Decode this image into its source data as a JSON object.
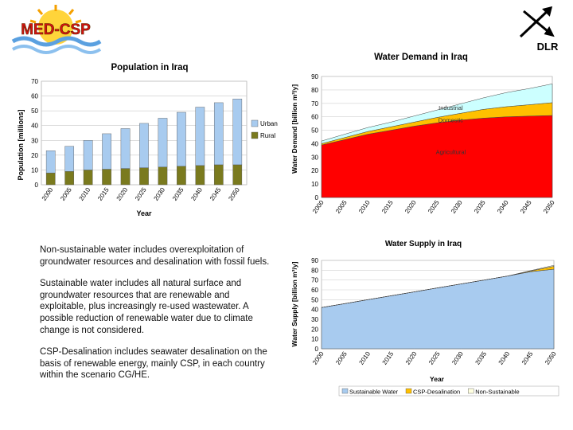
{
  "logos": {
    "left_text": "MED-CSP",
    "right_text": "DLR",
    "right_icon": "dlr-arrows-icon",
    "left_icon": "sun-wave-logo-icon"
  },
  "notes": {
    "p1": "Non-sustainable water includes overexploitation of groundwater resources and desalination with fossil fuels.",
    "p2": "Sustainable water includes all natural surface and groundwater resources that are renewable and exploitable, plus increasingly re-used wastewater. A possible reduction of renewable water due to climate change is not considered.",
    "p3": "CSP-Desalination includes seawater desalination on the basis of renewable energy, mainly CSP, in each country within the scenario CG/HE."
  },
  "chart_data": [
    {
      "id": "population",
      "type": "bar",
      "stacked": true,
      "title": "Population in Iraq",
      "xlabel": "Year",
      "ylabel": "Population [millions]",
      "ylim": [
        0,
        70
      ],
      "yticks": [
        0,
        10,
        20,
        30,
        40,
        50,
        60,
        70
      ],
      "categories": [
        "2000",
        "2005",
        "2010",
        "2015",
        "2020",
        "2025",
        "2030",
        "2035",
        "2040",
        "2045",
        "2050"
      ],
      "series": [
        {
          "name": "Rural",
          "color": "#7a7a1e",
          "values": [
            8,
            9,
            10,
            10.5,
            11,
            11.5,
            12,
            12.5,
            13,
            13.5,
            13.5
          ]
        },
        {
          "name": "Urban",
          "color": "#a8cbef",
          "values": [
            15,
            17,
            20,
            24,
            27,
            30,
            33,
            36.5,
            39.5,
            42,
            44.5
          ]
        }
      ],
      "legend": [
        "Urban",
        "Rural"
      ],
      "legend_position": "right"
    },
    {
      "id": "demand",
      "type": "area",
      "stacked": true,
      "title": "Water Demand in Iraq",
      "xlabel": "",
      "ylabel": "Water Demand [billion m³/y]",
      "ylim": [
        0,
        90
      ],
      "yticks": [
        0,
        10,
        20,
        30,
        40,
        50,
        60,
        70,
        80,
        90
      ],
      "x": [
        "2000",
        "2005",
        "2010",
        "2015",
        "2020",
        "2025",
        "2030",
        "2035",
        "2040",
        "2045",
        "2050"
      ],
      "series": [
        {
          "name": "Agricultural",
          "color": "#ff0000",
          "values": [
            39,
            43,
            47,
            50,
            53,
            55.5,
            57.5,
            59,
            60,
            60.5,
            61
          ]
        },
        {
          "name": "Domestic",
          "color": "#ffc000",
          "values": [
            1,
            1.5,
            2,
            2.5,
            3,
            4,
            5,
            6.5,
            7.5,
            8.5,
            9.5
          ]
        },
        {
          "name": "Industrial",
          "color": "#ccffff",
          "values": [
            2,
            2.5,
            3,
            3.5,
            4.5,
            5.5,
            7,
            8.5,
            10.5,
            12,
            14
          ]
        }
      ],
      "annotations": [
        "Industrial",
        "Domestic",
        "Agricultural"
      ]
    },
    {
      "id": "supply",
      "type": "area",
      "stacked": true,
      "title": "Water Supply in Iraq",
      "xlabel": "Year",
      "ylabel": "Water Supply [billion m³/y]",
      "ylim": [
        0,
        90
      ],
      "yticks": [
        0,
        10,
        20,
        30,
        40,
        50,
        60,
        70,
        80,
        90
      ],
      "x": [
        "2000",
        "2005",
        "2010",
        "2015",
        "2020",
        "2025",
        "2030",
        "2035",
        "2040",
        "2045",
        "2050"
      ],
      "series": [
        {
          "name": "Sustainable Water",
          "color": "#a8cbef",
          "values": [
            42,
            46,
            50,
            54,
            58,
            62,
            66,
            70,
            74,
            78.5,
            81
          ]
        },
        {
          "name": "CSP-Desalination",
          "color": "#ffc000",
          "values": [
            0,
            0,
            0,
            0,
            0,
            0,
            0,
            0,
            0,
            0.7,
            3
          ]
        },
        {
          "name": "Non-Sustainable",
          "color": "#ffffe0",
          "values": [
            0,
            0,
            0,
            0,
            0,
            0,
            0,
            0,
            0,
            0.4,
            1
          ]
        }
      ],
      "legend": [
        "Sustainable Water",
        "CSP-Desalination",
        "Non-Sustainable"
      ],
      "legend_position": "bottom"
    }
  ]
}
